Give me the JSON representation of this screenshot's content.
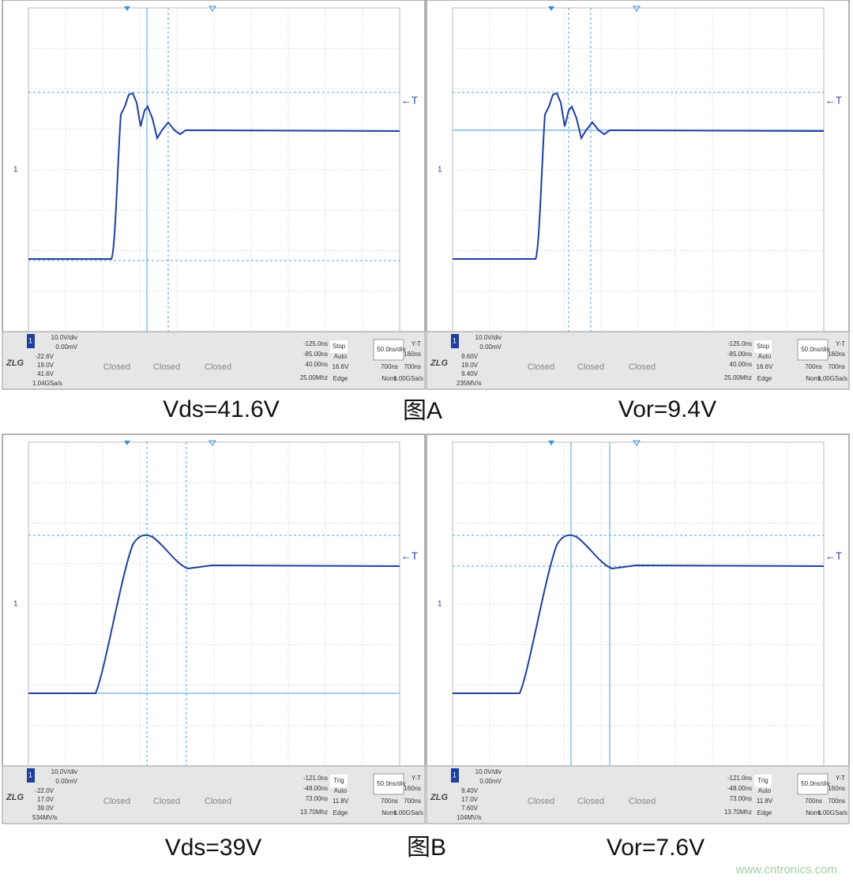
{
  "panels": [
    {
      "trigger_marker": "←T",
      "channel_marker": "1",
      "logo": "ZLG",
      "status": {
        "channel": "1",
        "scale": "10.0V/div",
        "offset": "0.00mV",
        "y1": "-22.6V",
        "y2": "19.0V",
        "dy": "41.6V",
        "rate": "1.04GSa/s",
        "closed": [
          "Closed",
          "Closed",
          "Closed"
        ],
        "x1": "-125.0ns",
        "x2": "-85.00ns",
        "dx": "40.00ns",
        "freq": "25.00Mhz",
        "mode": "Stop",
        "trig_mode": "Auto",
        "trig_level": "16.6V",
        "trig_type": "Edge",
        "timebase": "50.0",
        "timebase_unit": "ns/div",
        "display": "Y-T",
        "delay": "160ns",
        "depth": "700ns",
        "depth2": "700ns",
        "acq": "Norm",
        "sample": "1.00GSa/s"
      }
    },
    {
      "trigger_marker": "←T",
      "channel_marker": "1",
      "logo": "ZLG",
      "status": {
        "channel": "1",
        "scale": "10.0V/div",
        "offset": "0.00mV",
        "y1": "9.60V",
        "y2": "19.0V",
        "dy": "9.40V",
        "rate": "235MV/s",
        "closed": [
          "Closed",
          "Closed",
          "Closed"
        ],
        "x1": "-125.0ns",
        "x2": "-85.00ns",
        "dx": "40.00ns",
        "freq": "25.00Mhz",
        "mode": "Stop",
        "trig_mode": "Auto",
        "trig_level": "16.6V",
        "trig_type": "Edge",
        "timebase": "50.0",
        "timebase_unit": "ns/div",
        "display": "Y-T",
        "delay": "160ns",
        "depth": "700ns",
        "depth2": "700ns",
        "acq": "Norm",
        "sample": "1.00GSa/s"
      }
    },
    {
      "trigger_marker": "←T",
      "channel_marker": "1",
      "logo": "ZLG",
      "status": {
        "channel": "1",
        "scale": "10.0V/div",
        "offset": "0.00mV",
        "y1": "-22.0V",
        "y2": "17.0V",
        "dy": "39.0V",
        "rate": "534MV/s",
        "closed": [
          "Closed",
          "Closed",
          "Closed"
        ],
        "x1": "-121.0ns",
        "x2": "-48.00ns",
        "dx": "73.00ns",
        "freq": "13.70Mhz",
        "mode": "Trig",
        "trig_mode": "Auto",
        "trig_level": "11.8V",
        "trig_type": "Edge",
        "timebase": "50.0",
        "timebase_unit": "ns/div",
        "display": "Y-T",
        "delay": "160ns",
        "depth": "700ns",
        "depth2": "700ns",
        "acq": "Norm",
        "sample": "1.00GSa/s"
      }
    },
    {
      "trigger_marker": "←T",
      "channel_marker": "1",
      "logo": "ZLG",
      "status": {
        "channel": "1",
        "scale": "10.0V/div",
        "offset": "0.00mV",
        "y1": "9.40V",
        "y2": "17.0V",
        "dy": "7.60V",
        "rate": "104MV/s",
        "closed": [
          "Closed",
          "Closed",
          "Closed"
        ],
        "x1": "-121.0ns",
        "x2": "-48.00ns",
        "dx": "73.00ns",
        "freq": "13.70Mhz",
        "mode": "Trig",
        "trig_mode": "Auto",
        "trig_level": "11.8V",
        "trig_type": "Edge",
        "timebase": "50.0",
        "timebase_unit": "ns/div",
        "display": "Y-T",
        "delay": "160ns",
        "depth": "700ns",
        "depth2": "700ns",
        "acq": "Norm",
        "sample": "1.00GSa/s"
      }
    }
  ],
  "captions": [
    {
      "left": "Vds=41.6V",
      "center": "图A",
      "right": "Vor=9.4V"
    },
    {
      "left": "Vds=39V",
      "center": "图B",
      "right": "Vor=7.6V"
    }
  ],
  "watermark": "www.cntronics.com"
}
